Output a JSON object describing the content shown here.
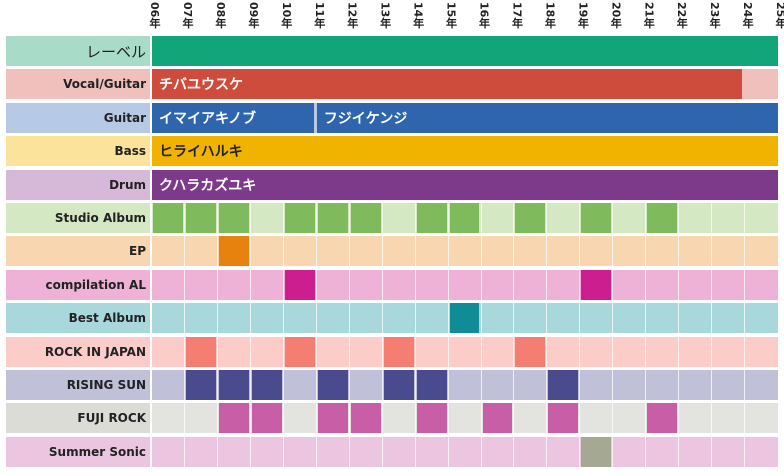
{
  "years": [
    "06年",
    "07年",
    "08年",
    "09年",
    "10年",
    "11年",
    "12年",
    "13年",
    "14年",
    "15年",
    "16年",
    "17年",
    "18年",
    "19年",
    "20年",
    "21年",
    "22年",
    "23年",
    "24年",
    "25年"
  ],
  "rows": [
    {
      "id": "label",
      "label": "レーベル",
      "label_bg": "#a8dcc8",
      "row_bg": "#13a57a",
      "big": true,
      "bars": [
        {
          "start": 0,
          "end": 19,
          "text": "",
          "color": "#13a57a"
        }
      ]
    },
    {
      "id": "vocal-guitar",
      "label": "Vocal/Guitar",
      "label_bg": "#f0c0bc",
      "row_bg": "#f0c0bc",
      "bars": [
        {
          "start": 0,
          "end": 18,
          "text": "チバユウスケ",
          "color": "#cd4c3c"
        }
      ]
    },
    {
      "id": "guitar",
      "label": "Guitar",
      "label_bg": "#b6c9e5",
      "row_bg": "#b6c9e5",
      "bars": [
        {
          "start": 0,
          "end": 5,
          "text": "イマイアキノブ",
          "color": "#2e65ad"
        },
        {
          "start": 5,
          "end": 19,
          "text": "フジイケンジ",
          "color": "#2e65ad"
        }
      ]
    },
    {
      "id": "bass",
      "label": "Bass",
      "label_bg": "#fbe39c",
      "row_bg": "#fbe39c",
      "bars": [
        {
          "start": 0,
          "end": 19,
          "text": "ヒライハルキ",
          "color": "#f0b400",
          "text_color": "#222222"
        }
      ]
    },
    {
      "id": "drum",
      "label": "Drum",
      "label_bg": "#d6b8d8",
      "row_bg": "#d6b8d8",
      "bars": [
        {
          "start": 0,
          "end": 19,
          "text": "クハラカズユキ",
          "color": "#7e3a8a"
        }
      ]
    },
    {
      "id": "studio-album",
      "label": "Studio Album",
      "label_bg": "#d4e8c4",
      "row_bg": "#d4e8c4",
      "cells": [
        0,
        1,
        2,
        4,
        5,
        6,
        8,
        9,
        11,
        13,
        15
      ],
      "cell_color": "#7fbb5c"
    },
    {
      "id": "ep",
      "label": "EP",
      "label_bg": "#f7d6b0",
      "row_bg": "#f7d6b0",
      "cells": [
        2
      ],
      "cell_color": "#e8820e"
    },
    {
      "id": "compilation-al",
      "label": "compilation AL",
      "label_bg": "#edb2d6",
      "row_bg": "#edb2d6",
      "cells": [
        4,
        13
      ],
      "cell_color": "#cc1e8e"
    },
    {
      "id": "best-album",
      "label": "Best Album",
      "label_bg": "#a9d8dc",
      "row_bg": "#a9d8dc",
      "cells": [
        9
      ],
      "cell_color": "#0f8c96"
    },
    {
      "id": "rock-in-japan",
      "label": "ROCK IN JAPAN",
      "label_bg": "#fcccc8",
      "row_bg": "#fcccc8",
      "cells": [
        1,
        4,
        7,
        11
      ],
      "cell_color": "#f47e72"
    },
    {
      "id": "rising-sun",
      "label": "RISING SUN",
      "label_bg": "#c0c0d8",
      "row_bg": "#c0c0d8",
      "cells": [
        1,
        2,
        3,
        5,
        7,
        8,
        12
      ],
      "cell_color": "#4a4a8e"
    },
    {
      "id": "fuji-rock",
      "label": "FUJI ROCK",
      "label_bg": "#dcdcd6",
      "row_bg": "#e3e3df",
      "cells": [
        2,
        3,
        5,
        6,
        8,
        10,
        12,
        15
      ],
      "cell_color": "#c85ea6"
    },
    {
      "id": "summer-sonic",
      "label": "Summer Sonic",
      "label_bg": "#ecc6e0",
      "row_bg": "#ecc6e0",
      "cells": [
        13
      ],
      "cell_color": "#a5a893"
    }
  ]
}
